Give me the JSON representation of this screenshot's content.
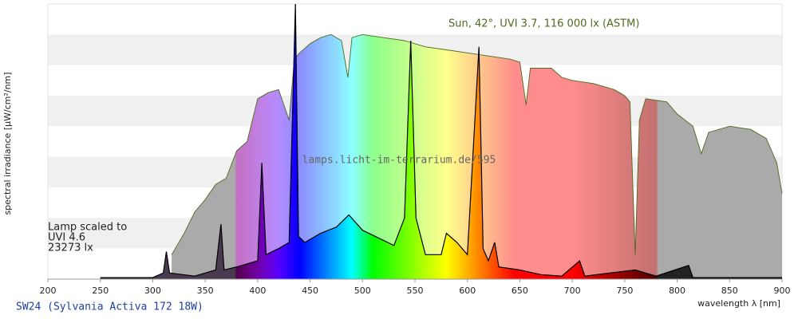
{
  "chart_data": {
    "type": "spectrum",
    "xlabel": "wavelength λ [nm]",
    "ylabel": "spectral irradiance [µW/cm²/nm]",
    "xlim": [
      200,
      900
    ],
    "ylim": [
      0,
      9
    ],
    "xticks": [
      200,
      250,
      300,
      350,
      400,
      450,
      500,
      550,
      600,
      650,
      700,
      750,
      800,
      850,
      900
    ],
    "watermark": "lamps.licht-im-terrarium.de/595",
    "lamp_note": [
      "Lamp scaled to",
      "UVI 4.6",
      "23273 lx"
    ],
    "series": [
      {
        "name": "Sun, 42°, UVI 3.7, 116 000 lx (ASTM)",
        "color": "#4f6a1e",
        "fill": "light",
        "x": [
          318,
          330,
          340,
          350,
          360,
          370,
          380,
          390,
          400,
          410,
          420,
          430,
          435,
          440,
          450,
          460,
          470,
          480,
          486,
          490,
          500,
          520,
          540,
          560,
          580,
          600,
          620,
          640,
          650,
          656,
          660,
          680,
          690,
          700,
          720,
          740,
          750,
          755,
          760,
          764,
          770,
          790,
          800,
          815,
          823,
          830,
          850,
          870,
          885,
          895,
          900
        ],
        "values": [
          0.8,
          1.5,
          2.2,
          2.6,
          3.1,
          3.3,
          4.2,
          4.5,
          5.9,
          6.1,
          6.2,
          5.2,
          7.2,
          7.4,
          7.7,
          7.9,
          8.0,
          7.8,
          6.6,
          7.9,
          8.0,
          7.9,
          7.8,
          7.6,
          7.5,
          7.4,
          7.3,
          7.2,
          7.1,
          5.7,
          6.9,
          6.9,
          6.6,
          6.5,
          6.4,
          6.2,
          6.0,
          5.8,
          0.8,
          5.2,
          5.9,
          5.8,
          5.4,
          5.0,
          4.1,
          4.8,
          5.0,
          4.9,
          4.6,
          3.8,
          2.8
        ]
      },
      {
        "name": "SW24 (Sylvania Activa 172 18W)",
        "color": "#000000",
        "fill": "saturated",
        "x": [
          250,
          300,
          310,
          313,
          316,
          340,
          360,
          365,
          368,
          380,
          400,
          404,
          408,
          420,
          430,
          436,
          439,
          445,
          460,
          475,
          487,
          500,
          530,
          540,
          546,
          551,
          560,
          575,
          580,
          590,
          600,
          611,
          615,
          620,
          626,
          630,
          650,
          670,
          690,
          707,
          712,
          760,
          780,
          811,
          815,
          900
        ],
        "values": [
          0.05,
          0.05,
          0.2,
          0.9,
          0.2,
          0.1,
          0.3,
          1.8,
          0.3,
          0.4,
          0.6,
          3.8,
          0.8,
          1.0,
          1.2,
          9.0,
          1.4,
          1.2,
          1.5,
          1.7,
          2.1,
          1.6,
          1.1,
          2.0,
          7.8,
          2.0,
          0.8,
          0.8,
          1.5,
          1.2,
          0.8,
          7.6,
          1.0,
          0.6,
          1.2,
          0.4,
          0.3,
          0.15,
          0.1,
          0.6,
          0.1,
          0.3,
          0.1,
          0.45,
          0.05,
          0.05
        ]
      }
    ]
  }
}
